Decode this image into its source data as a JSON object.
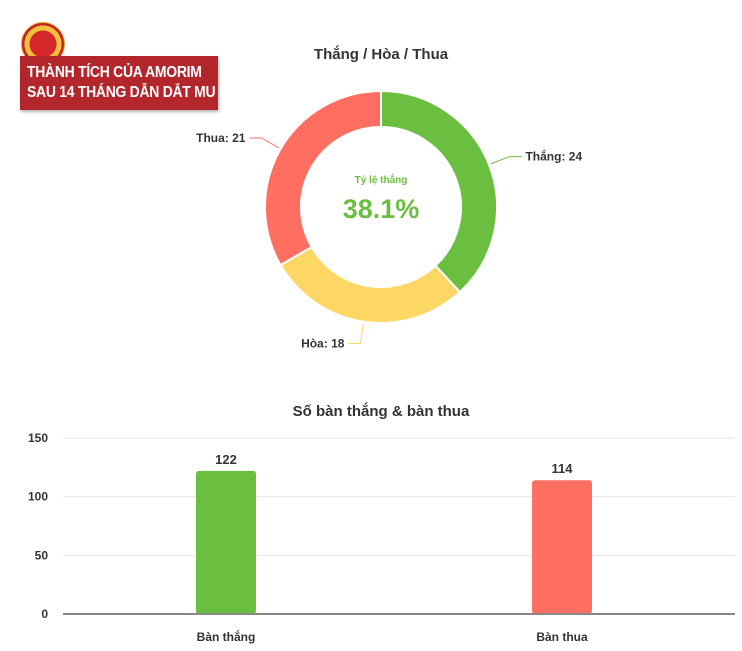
{
  "header": {
    "logo": "Manchester United crest",
    "line1": "THÀNH TÍCH CỦA AMORIM",
    "line2": "SAU 14 THÁNG DẪN DẮT MU"
  },
  "chart_data": [
    {
      "type": "pie",
      "title": "Thắng / Hòa / Thua",
      "donut": true,
      "slices": [
        {
          "name": "Thắng",
          "value": 24,
          "label": "Thắng: 24",
          "color": "#6abf40"
        },
        {
          "name": "Hòa",
          "value": 18,
          "label": "Hòa: 18",
          "color": "#fdd764"
        },
        {
          "name": "Thua",
          "value": 21,
          "label": "Thua: 21",
          "color": "#fe6f61"
        }
      ],
      "center": {
        "label": "Tỷ lệ thắng",
        "value": "38.1%",
        "color": "#6abf40"
      }
    },
    {
      "type": "bar",
      "title": "Số bàn thắng & bàn thua",
      "categories": [
        "Bàn thắng",
        "Bàn thua"
      ],
      "values": [
        122,
        114
      ],
      "colors": [
        "#6abf40",
        "#fe6f61"
      ],
      "data_labels": [
        "122",
        "114"
      ],
      "ylim": [
        0,
        150
      ],
      "yticks": [
        "0",
        "50",
        "100",
        "150"
      ],
      "grid": true,
      "xlabel": "",
      "ylabel": ""
    }
  ]
}
